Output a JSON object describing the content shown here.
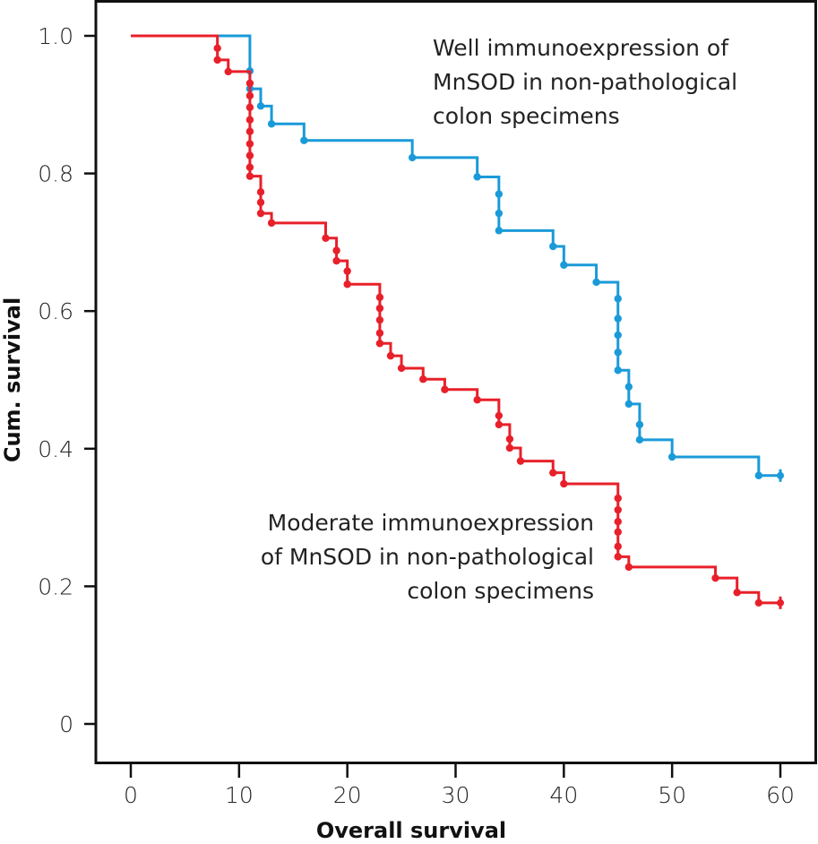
{
  "chart_data": {
    "type": "line",
    "subtype": "kaplan-meier-step",
    "title": "",
    "xlabel": "Overall survival",
    "ylabel": "Cum. survival",
    "xlim": [
      0,
      60
    ],
    "ylim": [
      0,
      1.0
    ],
    "x_ticks": [
      0,
      10,
      20,
      30,
      40,
      50,
      60
    ],
    "x_tick_labels": [
      "0",
      "10",
      "20",
      "30",
      "40",
      "50",
      "60"
    ],
    "y_ticks": [
      0,
      0.2,
      0.4,
      0.6,
      0.8,
      1.0
    ],
    "y_tick_labels": [
      "0",
      "0.2",
      "0.4",
      "0.6",
      "0.8",
      "1.0"
    ],
    "grid": false,
    "legend": "none",
    "series": [
      {
        "name": "Well immunoexpression of MnSOD in non-pathological colon specimens",
        "color": "#1a9ad9",
        "start": [
          0,
          1.0
        ],
        "events": [
          {
            "t": 11,
            "s": [
              0.949,
              0.923
            ]
          },
          {
            "t": 12,
            "s": [
              0.898
            ]
          },
          {
            "t": 13,
            "s": [
              0.872
            ]
          },
          {
            "t": 16,
            "s": [
              0.848
            ]
          },
          {
            "t": 26,
            "s": [
              0.823
            ]
          },
          {
            "t": 32,
            "s": [
              0.795
            ]
          },
          {
            "t": 34,
            "s": [
              0.77,
              0.742,
              0.717
            ]
          },
          {
            "t": 39,
            "s": [
              0.694
            ]
          },
          {
            "t": 40,
            "s": [
              0.667
            ]
          },
          {
            "t": 43,
            "s": [
              0.642
            ]
          },
          {
            "t": 45,
            "s": [
              0.618,
              0.589,
              0.565,
              0.54,
              0.514
            ]
          },
          {
            "t": 46,
            "s": [
              0.49,
              0.465
            ]
          },
          {
            "t": 47,
            "s": [
              0.435,
              0.413
            ]
          },
          {
            "t": 50,
            "s": [
              0.388
            ]
          },
          {
            "t": 58,
            "s": [
              0.361
            ]
          }
        ],
        "end": [
          60,
          0.361
        ],
        "censored_at": [
          60
        ]
      },
      {
        "name": "Moderate immunoexpression of MnSOD in non-pathological colon specimens",
        "color": "#e8202a",
        "start": [
          0,
          1.0
        ],
        "events": [
          {
            "t": 8,
            "s": [
              0.982,
              0.965
            ]
          },
          {
            "t": 9,
            "s": [
              0.948
            ]
          },
          {
            "t": 11,
            "s": [
              0.931,
              0.913,
              0.896,
              0.878,
              0.861,
              0.843,
              0.826,
              0.809,
              0.796
            ]
          },
          {
            "t": 12,
            "s": [
              0.773,
              0.758,
              0.742
            ]
          },
          {
            "t": 13,
            "s": [
              0.728
            ]
          },
          {
            "t": 18,
            "s": [
              0.706
            ]
          },
          {
            "t": 19,
            "s": [
              0.688,
              0.673
            ]
          },
          {
            "t": 20,
            "s": [
              0.658,
              0.639
            ]
          },
          {
            "t": 23,
            "s": [
              0.62,
              0.604,
              0.587,
              0.568,
              0.553
            ]
          },
          {
            "t": 24,
            "s": [
              0.535
            ]
          },
          {
            "t": 25,
            "s": [
              0.517
            ]
          },
          {
            "t": 27,
            "s": [
              0.501
            ]
          },
          {
            "t": 29,
            "s": [
              0.486
            ]
          },
          {
            "t": 32,
            "s": [
              0.471
            ]
          },
          {
            "t": 34,
            "s": [
              0.448,
              0.435
            ]
          },
          {
            "t": 35,
            "s": [
              0.414,
              0.401
            ]
          },
          {
            "t": 36,
            "s": [
              0.382
            ]
          },
          {
            "t": 39,
            "s": [
              0.365
            ]
          },
          {
            "t": 40,
            "s": [
              0.349
            ]
          },
          {
            "t": 45,
            "s": [
              0.328,
              0.311,
              0.294,
              0.279,
              0.258,
              0.243
            ]
          },
          {
            "t": 46,
            "s": [
              0.228
            ]
          },
          {
            "t": 54,
            "s": [
              0.212
            ]
          },
          {
            "t": 56,
            "s": [
              0.191
            ]
          },
          {
            "t": 58,
            "s": [
              0.176
            ]
          }
        ],
        "end": [
          60,
          0.176
        ],
        "censored_at": [
          60
        ]
      }
    ],
    "annotations": [
      {
        "series": 0,
        "lines": [
          "Well immunoexpression of",
          "MnSOD in non-pathological",
          "colon specimens"
        ],
        "align": "left",
        "placement": "top-right"
      },
      {
        "series": 1,
        "lines": [
          "Moderate immunoexpression",
          "of MnSOD in non-pathological",
          "colon specimens"
        ],
        "align": "right",
        "placement": "center-right"
      }
    ]
  }
}
